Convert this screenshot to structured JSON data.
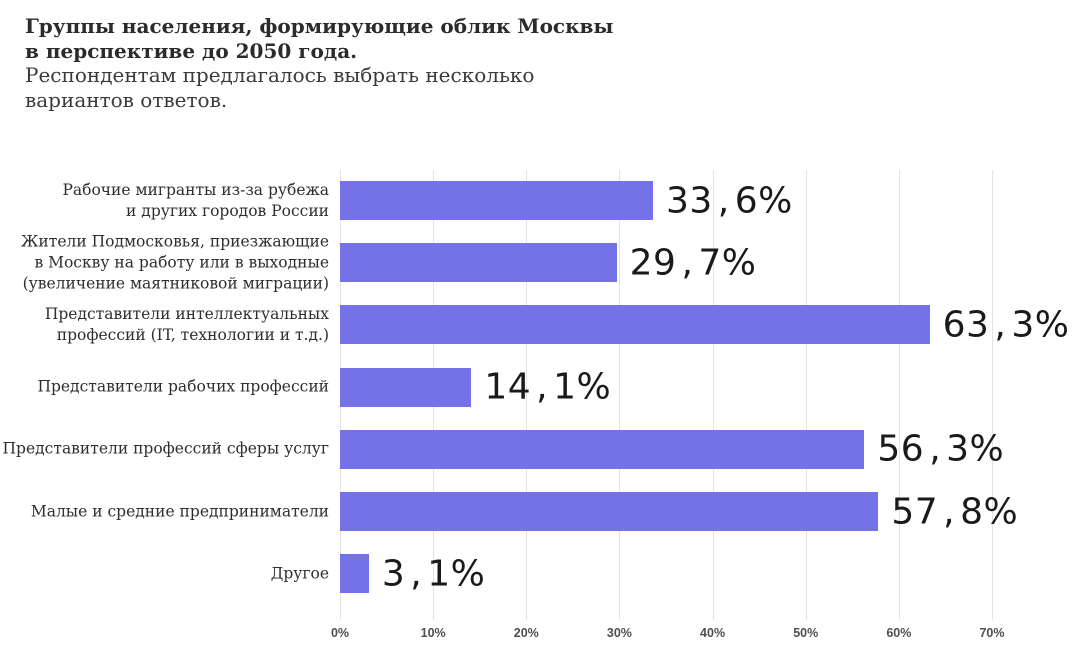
{
  "header": {
    "title_line1": "Группы населения, формирующие облик Москвы",
    "title_line2": "в перспективе до 2050 года.",
    "subtitle_line1": "Респондентам предлагалось выбрать несколько",
    "subtitle_line2": "вариантов ответов."
  },
  "chart_data": {
    "type": "bar",
    "orientation": "horizontal",
    "title": "Группы населения, формирующие облик Москвы в перспективе до 2050 года.",
    "subtitle": "Респондентам предлагалось выбрать несколько вариантов ответов.",
    "categories": [
      "Рабочие мигранты из-за рубежа и других городов России",
      "Жители Подмосковья, приезжающие в Москву на работу или в выходные (увеличение маятниковой миграции)",
      "Представители интеллектуальных профессий (IT, технологии и т.д.)",
      "Представители рабочих профессий",
      "Представители профессий сферы услуг",
      "Малые и средние предприниматели",
      "Другое"
    ],
    "category_lines": [
      [
        "Рабочие мигранты из-за рубежа",
        "и других городов России"
      ],
      [
        "Жители Подмосковья, приезжающие",
        "в Москву на работу или в выходные",
        "(увеличение маятниковой миграции)"
      ],
      [
        "Представители интеллектуальных",
        "профессий (IT, технологии и т.д.)"
      ],
      [
        "Представители рабочих профессий"
      ],
      [
        "Представители профессий сферы услуг"
      ],
      [
        "Малые и средние предприниматели"
      ],
      [
        "Другое"
      ]
    ],
    "values": [
      33.6,
      29.7,
      63.3,
      14.1,
      56.3,
      57.8,
      3.1
    ],
    "value_labels": [
      "33,6%",
      "29,7%",
      "63,3%",
      "14,1%",
      "56,3%",
      "57,8%",
      "3,1%"
    ],
    "x_ticks": [
      "0%",
      "10%",
      "20%",
      "30%",
      "40%",
      "50%",
      "60%",
      "70%"
    ],
    "x_tick_values": [
      0,
      10,
      20,
      30,
      40,
      50,
      60,
      70
    ],
    "xlim": [
      0,
      70
    ],
    "grid": true,
    "legend": false,
    "colors": {
      "bar": "#7571e6",
      "gridline": "#e3e3e3",
      "title": "#2b2b2b",
      "category_label": "#2e2e2e",
      "value_label": "#1a1a1a",
      "axis_label": "#4f4f4f",
      "background": "#ffffff"
    }
  }
}
